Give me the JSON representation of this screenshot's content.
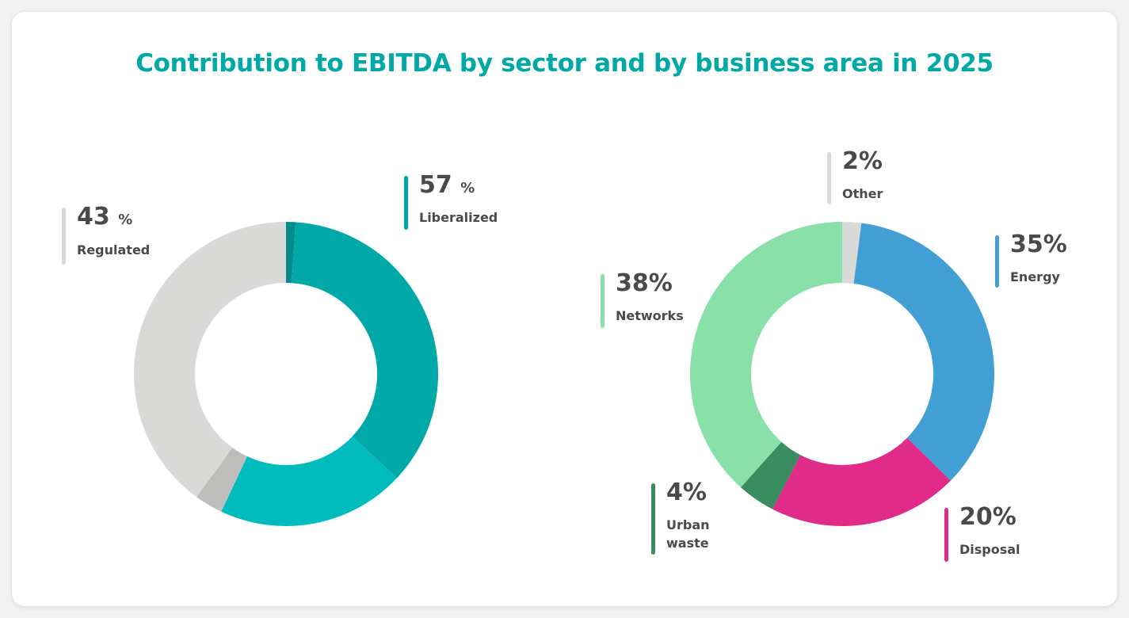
{
  "title": "Contribution to EBITDA by sector and by business area in 2025",
  "chart_data": [
    {
      "type": "pie",
      "variant": "donut",
      "name": "By sector",
      "slices": [
        {
          "label": "Liberalized",
          "value": 57,
          "display": "57",
          "unit": "%",
          "color": "#00a8a8",
          "segments": [
            {
              "value": 1,
              "color": "#008c8a"
            },
            {
              "value": 36,
              "color": "#00a8a8"
            },
            {
              "value": 20,
              "color": "#00bcbc"
            }
          ]
        },
        {
          "label": "Regulated",
          "value": 43,
          "display": "43",
          "unit": "%",
          "color": "#d9d9d9",
          "segments": [
            {
              "value": 3,
              "color": "#bdbdbc"
            },
            {
              "value": 40,
              "color": "#d9d9d8"
            }
          ]
        }
      ]
    },
    {
      "type": "pie",
      "variant": "donut",
      "name": "By business area",
      "slices": [
        {
          "label": "Other",
          "value": 2,
          "display": "2%",
          "color": "#d9d9d8"
        },
        {
          "label": "Energy",
          "value": 35,
          "display": "35%",
          "color": "#429fd3"
        },
        {
          "label": "Disposal",
          "value": 20,
          "display": "20%",
          "color": "#e02c88"
        },
        {
          "label": "Urban waste",
          "value": 4,
          "display": "4%",
          "color": "#3a8c61"
        },
        {
          "label": "Networks",
          "value": 38,
          "display": "38%",
          "color": "#8ae0a9"
        }
      ]
    }
  ]
}
